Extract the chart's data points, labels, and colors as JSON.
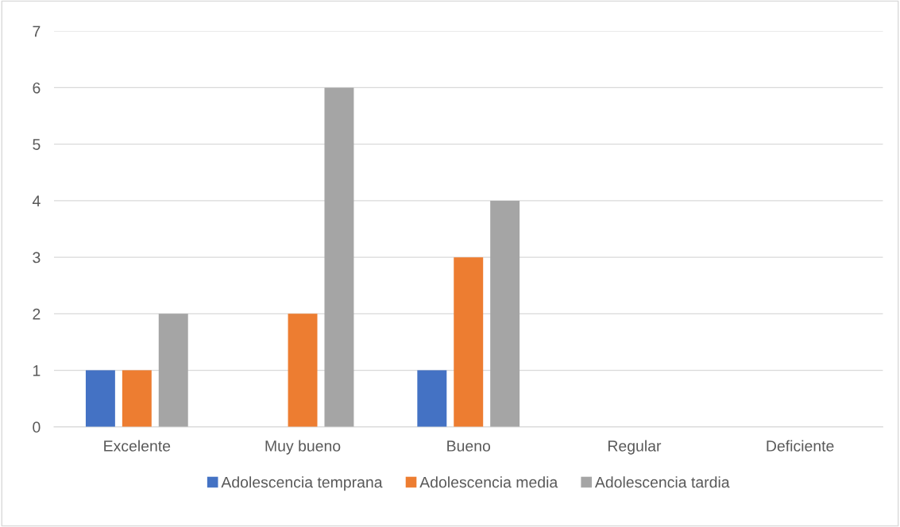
{
  "chart_data": {
    "type": "bar",
    "categories": [
      "Excelente",
      "Muy bueno",
      "Bueno",
      "Regular",
      "Deficiente"
    ],
    "series": [
      {
        "name": "Adolescencia temprana",
        "color": "#4472c4",
        "values": [
          1,
          0,
          1,
          0,
          0
        ]
      },
      {
        "name": "Adolescencia media",
        "color": "#ed7d31",
        "values": [
          1,
          2,
          3,
          0,
          0
        ]
      },
      {
        "name": "Adolescencia tardia",
        "color": "#a5a5a5",
        "values": [
          2,
          6,
          4,
          0,
          0
        ]
      }
    ],
    "ylim": [
      0,
      7
    ],
    "yticks": [
      0,
      1,
      2,
      3,
      4,
      5,
      6,
      7
    ],
    "grid": "y",
    "legend": "bottom"
  }
}
